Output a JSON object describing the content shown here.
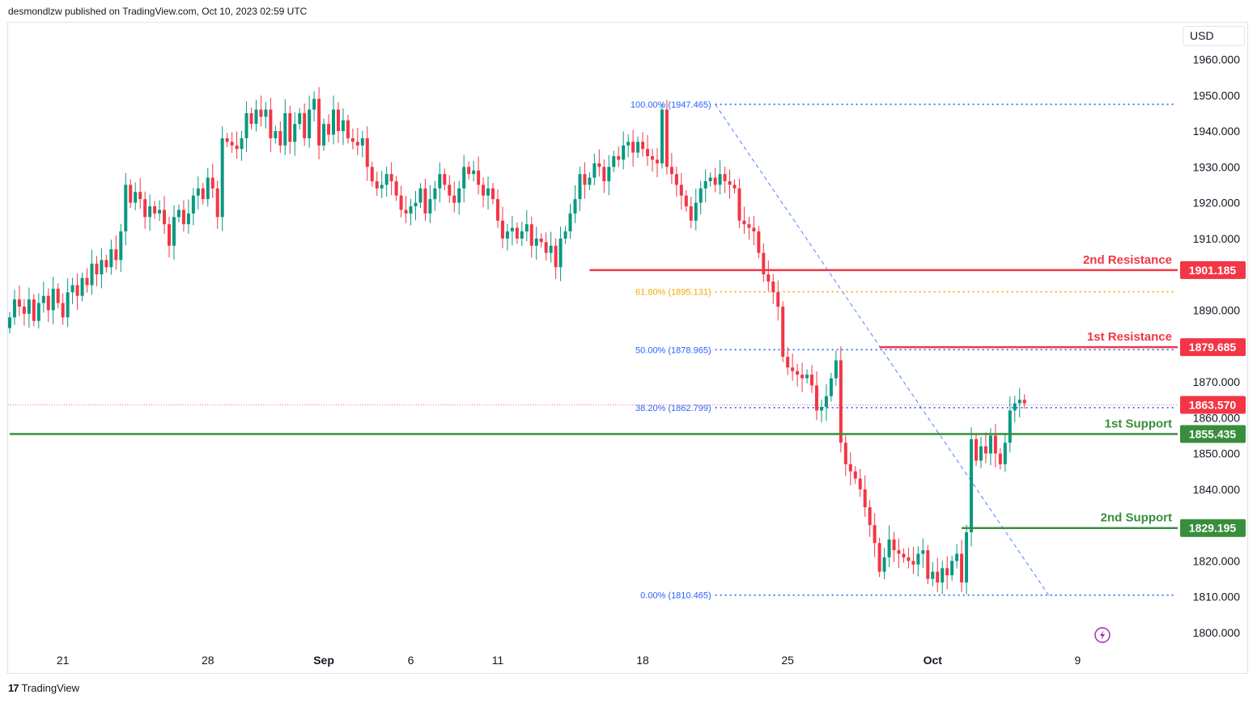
{
  "header": {
    "published": "desmondlzw published on TradingView.com, Oct 10, 2023 02:59 UTC"
  },
  "currency": "USD",
  "footer": {
    "brand": "TradingView",
    "logo_mark": "17"
  },
  "colors": {
    "up": "#089981",
    "down": "#f23645",
    "resistance": "#f23645",
    "support": "#388e3c",
    "fib_blue": "#2962ff",
    "fib_gold": "#f2a900",
    "axis_text": "#131722",
    "grid": "#f0f3fa"
  },
  "chart_data": {
    "type": "candlestick",
    "title": "",
    "xlabel": "",
    "ylabel": "",
    "ylim": [
      1795,
      1965
    ],
    "y_ticks": [
      "1800.000",
      "1810.000",
      "1820.000",
      "1830.000",
      "1840.000",
      "1850.000",
      "1860.000",
      "1870.000",
      "1880.000",
      "1890.000",
      "1900.000",
      "1910.000",
      "1920.000",
      "1930.000",
      "1940.000",
      "1950.000",
      "1960.000"
    ],
    "x_ticks": [
      {
        "label": "21",
        "bar": 11
      },
      {
        "label": "28",
        "bar": 41
      },
      {
        "label": "Sep",
        "bar": 65
      },
      {
        "label": "6",
        "bar": 83
      },
      {
        "label": "11",
        "bar": 101
      },
      {
        "label": "18",
        "bar": 131
      },
      {
        "label": "25",
        "bar": 161
      },
      {
        "label": "Oct",
        "bar": 191
      },
      {
        "label": "9",
        "bar": 221
      }
    ],
    "levels": [
      {
        "name": "2nd Resistance",
        "value": 1901.185,
        "label": "1901.185",
        "kind": "resistance",
        "start_bar": 120
      },
      {
        "name": "1st Resistance",
        "value": 1879.685,
        "label": "1879.685",
        "kind": "resistance",
        "start_bar": 180
      },
      {
        "name": "1st Support",
        "value": 1855.435,
        "label": "1855.435",
        "kind": "support",
        "start_bar": 0
      },
      {
        "name": "2nd Support",
        "value": 1829.195,
        "label": "1829.195",
        "kind": "support",
        "start_bar": 197
      }
    ],
    "current_price": {
      "value": 1863.57,
      "label": "1863.570"
    },
    "fibonacci": [
      {
        "ratio": "100.00%",
        "value": 1947.465,
        "label": "100.00% (1947.465)",
        "color": "blue"
      },
      {
        "ratio": "61.80%",
        "value": 1895.131,
        "label": "61.80% (1895.131)",
        "color": "gold"
      },
      {
        "ratio": "50.00%",
        "value": 1878.965,
        "label": "50.00% (1878.965)",
        "color": "blue"
      },
      {
        "ratio": "38.20%",
        "value": 1862.799,
        "label": "38.20% (1862.799)",
        "color": "blue"
      },
      {
        "ratio": "0.00%",
        "value": 1810.465,
        "label": "0.00% (1810.465)",
        "color": "blue"
      }
    ],
    "fib_start_bar": 146,
    "fib_end_bar": 215,
    "fib_line_end_bar": 241,
    "closes": [
      1888,
      1893,
      1891,
      1889,
      1893,
      1887,
      1892,
      1894,
      1890,
      1896,
      1892,
      1888,
      1895,
      1897,
      1894,
      1899,
      1897,
      1903,
      1900,
      1904,
      1902,
      1907,
      1904,
      1912,
      1925,
      1920,
      1923,
      1921,
      1916,
      1919,
      1917,
      1918,
      1914,
      1908,
      1916,
      1918,
      1914,
      1917,
      1922,
      1924,
      1921,
      1927,
      1924,
      1916,
      1938,
      1937,
      1936,
      1935,
      1938,
      1945,
      1942,
      1946,
      1944,
      1946,
      1938,
      1940,
      1936,
      1945,
      1937,
      1942,
      1945,
      1938,
      1946,
      1949,
      1936,
      1942,
      1939,
      1946,
      1940,
      1943,
      1938,
      1937,
      1936,
      1938,
      1930,
      1926,
      1924,
      1925,
      1928,
      1926,
      1922,
      1918,
      1917,
      1919,
      1920,
      1924,
      1917,
      1921,
      1924,
      1928,
      1925,
      1922,
      1920,
      1924,
      1930,
      1928,
      1929,
      1925,
      1922,
      1924,
      1921,
      1915,
      1910,
      1912,
      1913,
      1910,
      1912,
      1914,
      1908,
      1910,
      1909,
      1906,
      1908,
      1902,
      1910,
      1912,
      1917,
      1921,
      1928,
      1925,
      1927,
      1931,
      1930,
      1926,
      1930,
      1933,
      1932,
      1936,
      1937,
      1934,
      1937,
      1935,
      1933,
      1932,
      1931,
      1946,
      1930,
      1928,
      1925,
      1922,
      1919,
      1915,
      1920,
      1924,
      1926,
      1927,
      1925,
      1928,
      1926,
      1925,
      1924,
      1915,
      1914,
      1913,
      1912,
      1906,
      1900,
      1898,
      1895,
      1891,
      1877,
      1874,
      1873,
      1872,
      1871,
      1872,
      1869,
      1862,
      1863,
      1866,
      1871,
      1876,
      1853,
      1847,
      1845,
      1843,
      1840,
      1835,
      1830,
      1825,
      1817,
      1821,
      1826,
      1823,
      1822,
      1821,
      1820,
      1819,
      1822,
      1823,
      1815,
      1817,
      1814,
      1818,
      1816,
      1820,
      1822,
      1814,
      1828,
      1854,
      1848,
      1852,
      1850,
      1855,
      1850,
      1847,
      1853,
      1862,
      1864,
      1865,
      1864
    ]
  }
}
